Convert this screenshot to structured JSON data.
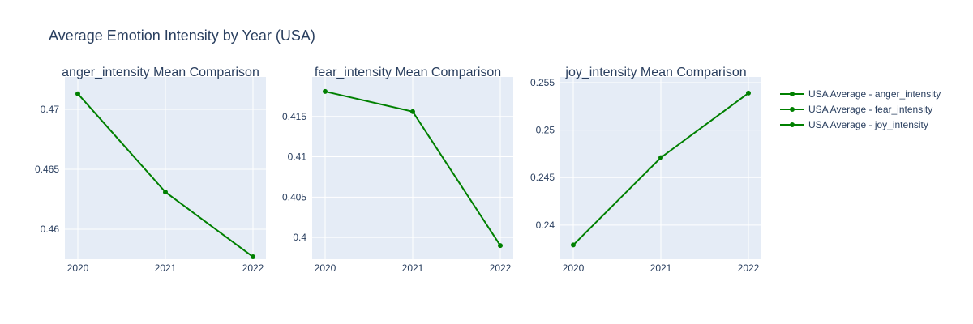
{
  "chart_data": {
    "type": "line",
    "title": "Average Emotion Intensity by Year (USA)",
    "colors": {
      "series": "#008000",
      "plot_bg": "#e5ecf6",
      "grid": "#ffffff",
      "text": "#2a3f5f"
    },
    "grid": true,
    "legend_position": "right",
    "legend": [
      "USA Average - anger_intensity",
      "USA Average - fear_intensity",
      "USA Average - joy_intensity"
    ],
    "panels": [
      {
        "title": "anger_intensity Mean Comparison",
        "x": [
          "2020",
          "2021",
          "2022"
        ],
        "y": [
          0.4713,
          0.4631,
          0.4577
        ],
        "yticks": [
          "0.46",
          "0.465",
          "0.47"
        ],
        "ytick_values": [
          0.46,
          0.465,
          0.47
        ],
        "ylim": [
          0.4575,
          0.4727
        ]
      },
      {
        "title": "fear_intensity Mean Comparison",
        "x": [
          "2020",
          "2021",
          "2022"
        ],
        "y": [
          0.4181,
          0.4156,
          0.399
        ],
        "yticks": [
          "0.4",
          "0.405",
          "0.41",
          "0.415"
        ],
        "ytick_values": [
          0.4,
          0.405,
          0.41,
          0.415
        ],
        "ylim": [
          0.3973,
          0.4199
        ]
      },
      {
        "title": "joy_intensity Mean Comparison",
        "x": [
          "2020",
          "2021",
          "2022"
        ],
        "y": [
          0.2379,
          0.2471,
          0.2539
        ],
        "yticks": [
          "0.24",
          "0.245",
          "0.25",
          "0.255"
        ],
        "ytick_values": [
          0.24,
          0.245,
          0.25,
          0.255
        ],
        "ylim": [
          0.2364,
          0.2556
        ]
      }
    ]
  }
}
